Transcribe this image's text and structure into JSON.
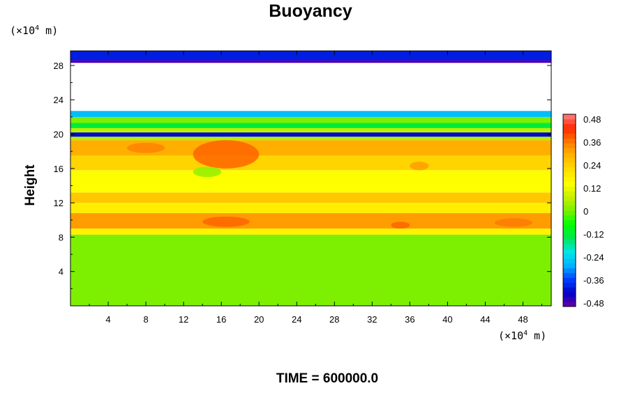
{
  "chart_data": {
    "type": "heatmap",
    "title": "Buoyancy",
    "ylabel": "Height",
    "xlabel": "",
    "x_unit": {
      "prefix": "(×10",
      "exp": "4",
      "suffix": " m)"
    },
    "y_unit": {
      "prefix": "(×10",
      "exp": "4",
      "suffix": " m)"
    },
    "xlim": [
      0,
      51
    ],
    "ylim": [
      0,
      29.7
    ],
    "x_ticks": [
      4,
      8,
      12,
      16,
      20,
      24,
      28,
      32,
      36,
      40,
      44,
      48
    ],
    "y_ticks": [
      4,
      8,
      12,
      16,
      20,
      24,
      28
    ],
    "colorbar": {
      "range": [
        -0.48,
        0.48
      ],
      "labels": [
        "0.48",
        "0.36",
        "0.24",
        "0.12",
        "0",
        "-0.12",
        "-0.24",
        "-0.36",
        "-0.48"
      ],
      "levels": 40,
      "stops": [
        "#6a00a8",
        "#0000c8",
        "#0040ff",
        "#00b4ff",
        "#00e6e6",
        "#00e650",
        "#00ff00",
        "#7cf000",
        "#c8f000",
        "#ffff00",
        "#ffdc00",
        "#ffb400",
        "#ff7800",
        "#ff2800",
        "#ff8080"
      ]
    },
    "bands": [
      {
        "y": [
          0,
          8.3
        ],
        "value": 0.0
      },
      {
        "y": [
          8.3,
          9.0
        ],
        "value": 0.16
      },
      {
        "y": [
          9.0,
          10.8
        ],
        "value": 0.3
      },
      {
        "y": [
          10.8,
          12.0
        ],
        "value": 0.17
      },
      {
        "y": [
          12.0,
          13.2
        ],
        "value": 0.24
      },
      {
        "y": [
          13.2,
          15.8
        ],
        "value": 0.14
      },
      {
        "y": [
          15.8,
          17.5
        ],
        "value": 0.22
      },
      {
        "y": [
          17.5,
          19.3
        ],
        "value": 0.28
      },
      {
        "y": [
          19.3,
          19.7
        ],
        "value": 0.05
      },
      {
        "y": [
          19.7,
          20.2
        ],
        "value": -0.4
      },
      {
        "y": [
          20.2,
          20.7
        ],
        "value": 0.06
      },
      {
        "y": [
          20.7,
          21.3
        ],
        "value": -0.12
      },
      {
        "y": [
          21.3,
          22.0
        ],
        "value": 0.0
      },
      {
        "y": [
          22.0,
          22.7
        ],
        "value": -0.26
      },
      {
        "y": [
          28.3,
          28.6
        ],
        "value": -0.46
      },
      {
        "y": [
          28.6,
          29.7
        ],
        "value": -0.38
      }
    ],
    "patches": [
      {
        "x": [
          13,
          20
        ],
        "y": [
          16.0,
          19.3
        ],
        "value": 0.36
      },
      {
        "x": [
          6,
          10
        ],
        "y": [
          17.8,
          19.0
        ],
        "value": 0.33
      },
      {
        "x": [
          13,
          16
        ],
        "y": [
          15.0,
          16.2
        ],
        "value": 0.02
      },
      {
        "x": [
          14,
          19
        ],
        "y": [
          9.2,
          10.4
        ],
        "value": 0.36
      },
      {
        "x": [
          34,
          36
        ],
        "y": [
          9.0,
          9.8
        ],
        "value": 0.36
      },
      {
        "x": [
          45,
          49
        ],
        "y": [
          9.2,
          10.2
        ],
        "value": 0.34
      },
      {
        "x": [
          36,
          38
        ],
        "y": [
          15.8,
          16.8
        ],
        "value": 0.3
      }
    ],
    "annotation": {
      "text": "TIME = 600000.0"
    }
  }
}
